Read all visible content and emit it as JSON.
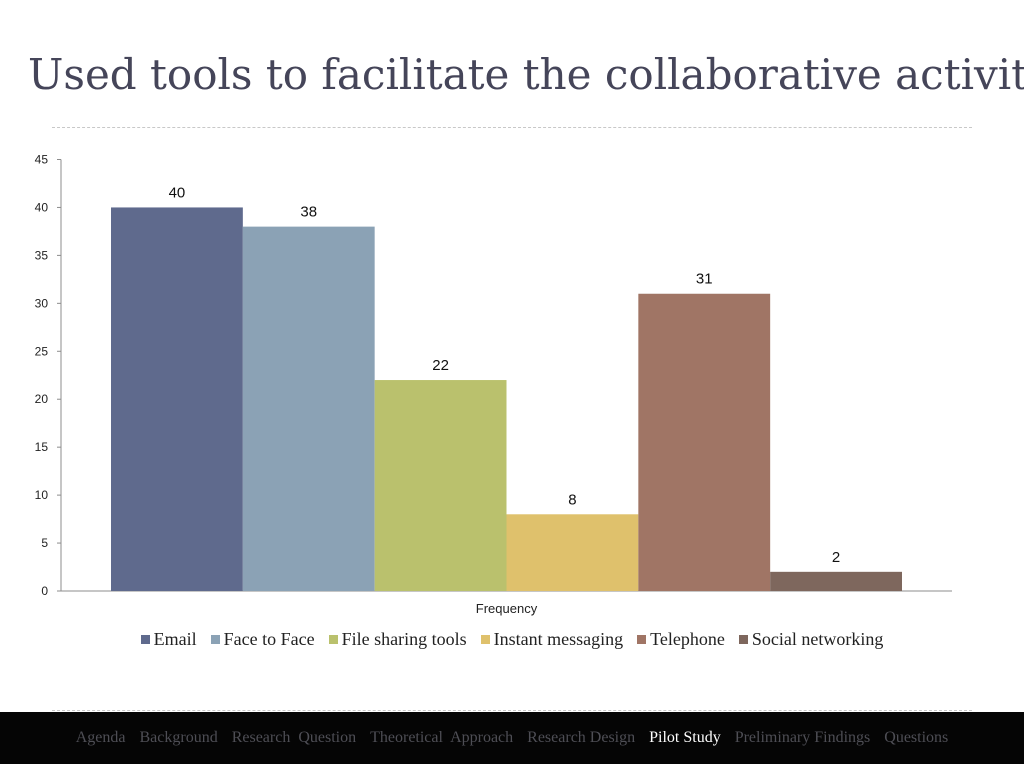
{
  "slide": {
    "title": "Used tools to facilitate the collaborative activity"
  },
  "chart_data": {
    "type": "bar",
    "title": "",
    "xlabel": "Frequency",
    "ylabel": "",
    "ylim": [
      0,
      45
    ],
    "yticks": [
      0,
      5,
      10,
      15,
      20,
      25,
      30,
      35,
      40,
      45
    ],
    "grid": false,
    "legend_position": "bottom",
    "categories": [
      "Frequency"
    ],
    "series": [
      {
        "name": "Email",
        "values": [
          40
        ],
        "color": "#5f6a8d"
      },
      {
        "name": "Face to Face",
        "values": [
          38
        ],
        "color": "#8ba2b5"
      },
      {
        "name": "File sharing tools",
        "values": [
          22
        ],
        "color": "#bac16d"
      },
      {
        "name": "Instant messaging",
        "values": [
          8
        ],
        "color": "#dfc16c"
      },
      {
        "name": "Telephone",
        "values": [
          31
        ],
        "color": "#a07565"
      },
      {
        "name": "Social networking",
        "values": [
          2
        ],
        "color": "#7e675d"
      }
    ]
  },
  "navbar": {
    "items": [
      {
        "label": "Agenda",
        "active": false
      },
      {
        "label": "Background",
        "active": false
      },
      {
        "label": "Research  Question",
        "active": false
      },
      {
        "label": "Theoretical  Approach",
        "active": false
      },
      {
        "label": "Research Design",
        "active": false
      },
      {
        "label": "Pilot Study",
        "active": true
      },
      {
        "label": "Preliminary Findings",
        "active": false
      },
      {
        "label": "Questions",
        "active": false
      }
    ]
  }
}
